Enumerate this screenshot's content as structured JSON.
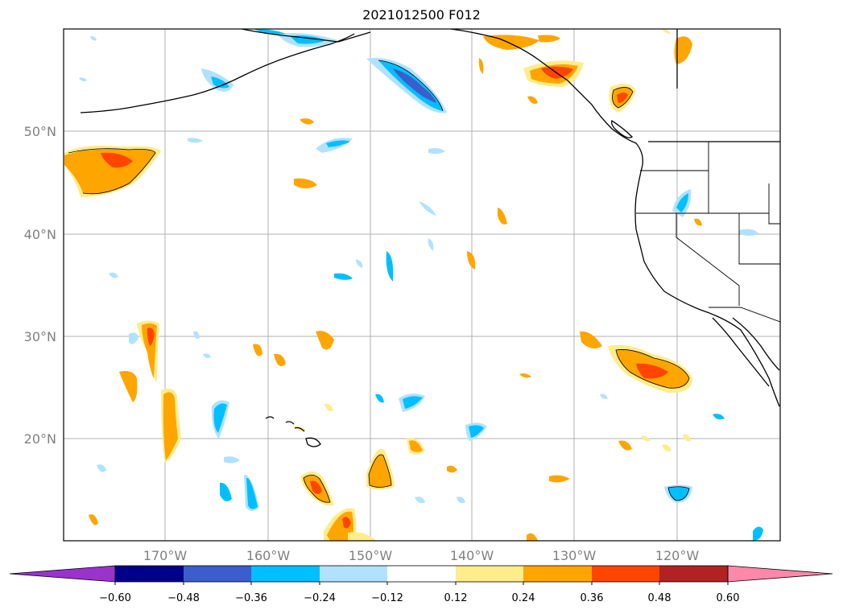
{
  "title": "2021012500 F012",
  "map": {
    "lat_labels": [
      "50°N",
      "40°N",
      "30°N",
      "20°N"
    ],
    "lon_labels": [
      "170°W",
      "160°W",
      "150°W",
      "140°W",
      "130°W",
      "120°W"
    ],
    "gridlines": true
  },
  "colorbar": {
    "tick_labels": [
      "−0.60",
      "−0.48",
      "−0.36",
      "−0.24",
      "−0.12",
      "0.12",
      "0.24",
      "0.36",
      "0.48",
      "0.60"
    ],
    "colors": {
      "under": "#9933cc",
      "bins": [
        "#00008b",
        "#3c5dcc",
        "#00bfff",
        "#b0e2ff",
        "#ffffff",
        "#ffec8b",
        "#ffa500",
        "#ff4500",
        "#b22222"
      ],
      "over": "#ff88aa"
    }
  },
  "colors": {
    "neg_light": "#b0e2ff",
    "neg_mid": "#00bfff",
    "neg_strong": "#3c5dcc",
    "pos_light": "#ffec8b",
    "pos_mid": "#ffa500",
    "pos_strong": "#ff4500",
    "pos_max": "#b22222"
  }
}
